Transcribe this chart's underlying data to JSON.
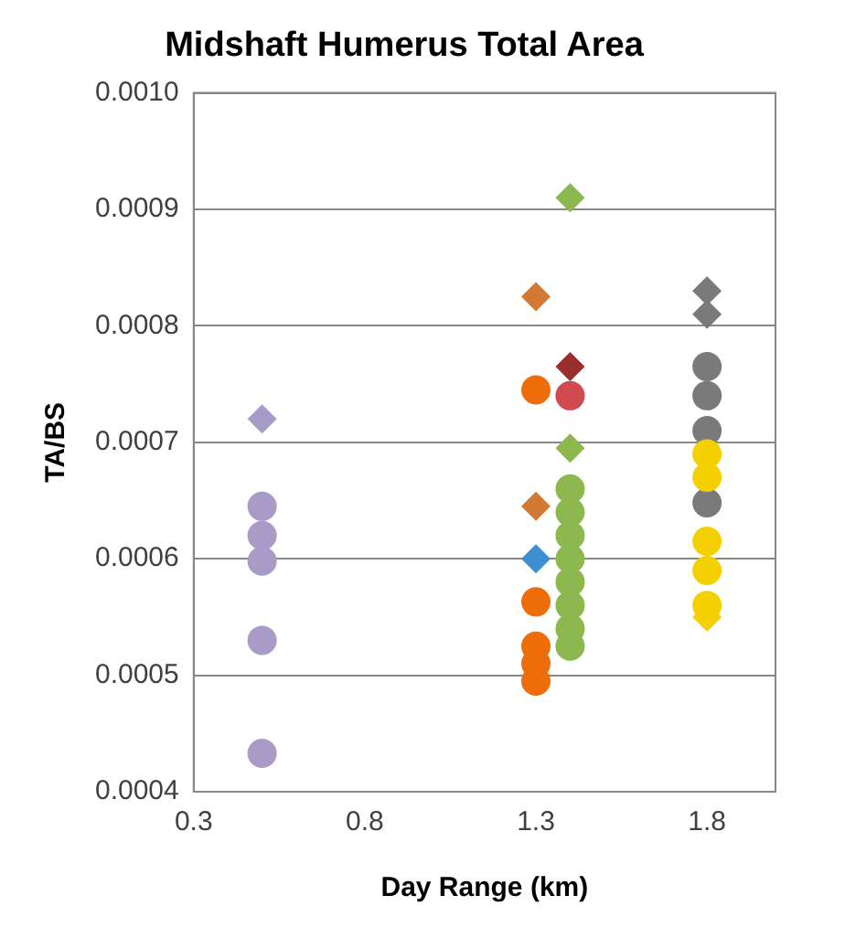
{
  "chart_data": {
    "type": "scatter",
    "title": "Midshaft Humerus Total Area",
    "xlabel": "Day Range (km)",
    "ylabel": "TA/BS",
    "xlim": [
      0.3,
      2.0
    ],
    "xticks": [
      0.3,
      0.8,
      1.3,
      1.8
    ],
    "ylim": [
      0.0004,
      0.001
    ],
    "yticks": [
      0.0004,
      0.0005,
      0.0006,
      0.0007,
      0.0008,
      0.0009,
      {
        "value": 0.001,
        "label": "0.0010"
      }
    ],
    "grid": "y",
    "legend": false,
    "series": [
      {
        "color": "#a99bc8",
        "marker": "circle",
        "x": [
          0.5,
          0.5,
          0.5,
          0.5,
          0.5
        ],
        "values": [
          0.000645,
          0.00062,
          0.000598,
          0.00053,
          0.000433
        ]
      },
      {
        "color": "#a99bc8",
        "marker": "diamond",
        "x": [
          0.5
        ],
        "values": [
          0.00072
        ]
      },
      {
        "color": "#d07a35",
        "marker": "diamond",
        "x": [
          1.3,
          1.3
        ],
        "values": [
          0.000825,
          0.000645
        ]
      },
      {
        "color": "#3e8fd0",
        "marker": "diamond",
        "x": [
          1.3
        ],
        "values": [
          0.0006
        ]
      },
      {
        "color": "#ed6d0a",
        "marker": "circle",
        "x": [
          1.3,
          1.3,
          1.3,
          1.3,
          1.3
        ],
        "values": [
          0.000745,
          0.000563,
          0.000525,
          0.00051,
          0.000495
        ]
      },
      {
        "color": "#9b2d30",
        "marker": "diamond",
        "x": [
          1.4
        ],
        "values": [
          0.000765
        ]
      },
      {
        "color": "#d04a4e",
        "marker": "circle",
        "x": [
          1.4
        ],
        "values": [
          0.00074
        ]
      },
      {
        "color": "#8cb84f",
        "marker": "diamond",
        "x": [
          1.4,
          1.4
        ],
        "values": [
          0.00091,
          0.000695
        ]
      },
      {
        "color": "#8cb84f",
        "marker": "circle",
        "x": [
          1.4,
          1.4,
          1.4,
          1.4,
          1.4,
          1.4,
          1.4,
          1.4
        ],
        "values": [
          0.00066,
          0.00064,
          0.00062,
          0.0006,
          0.00058,
          0.00056,
          0.00054,
          0.000525
        ]
      },
      {
        "color": "#f5d000",
        "marker": "diamond",
        "x": [
          1.8
        ],
        "values": [
          0.00055
        ]
      },
      {
        "color": "#f5d000",
        "marker": "circle",
        "x": [
          1.8,
          1.8,
          1.8,
          1.8,
          1.8
        ],
        "values": [
          0.00069,
          0.00067,
          0.000615,
          0.00059,
          0.00056
        ]
      },
      {
        "color": "#7a7a7a",
        "marker": "diamond",
        "x": [
          1.8,
          1.8
        ],
        "values": [
          0.00083,
          0.00081
        ]
      },
      {
        "color": "#7a7a7a",
        "marker": "circle",
        "x": [
          1.8,
          1.8,
          1.8,
          1.8
        ],
        "values": [
          0.000765,
          0.00074,
          0.00071,
          0.000648
        ]
      }
    ]
  }
}
